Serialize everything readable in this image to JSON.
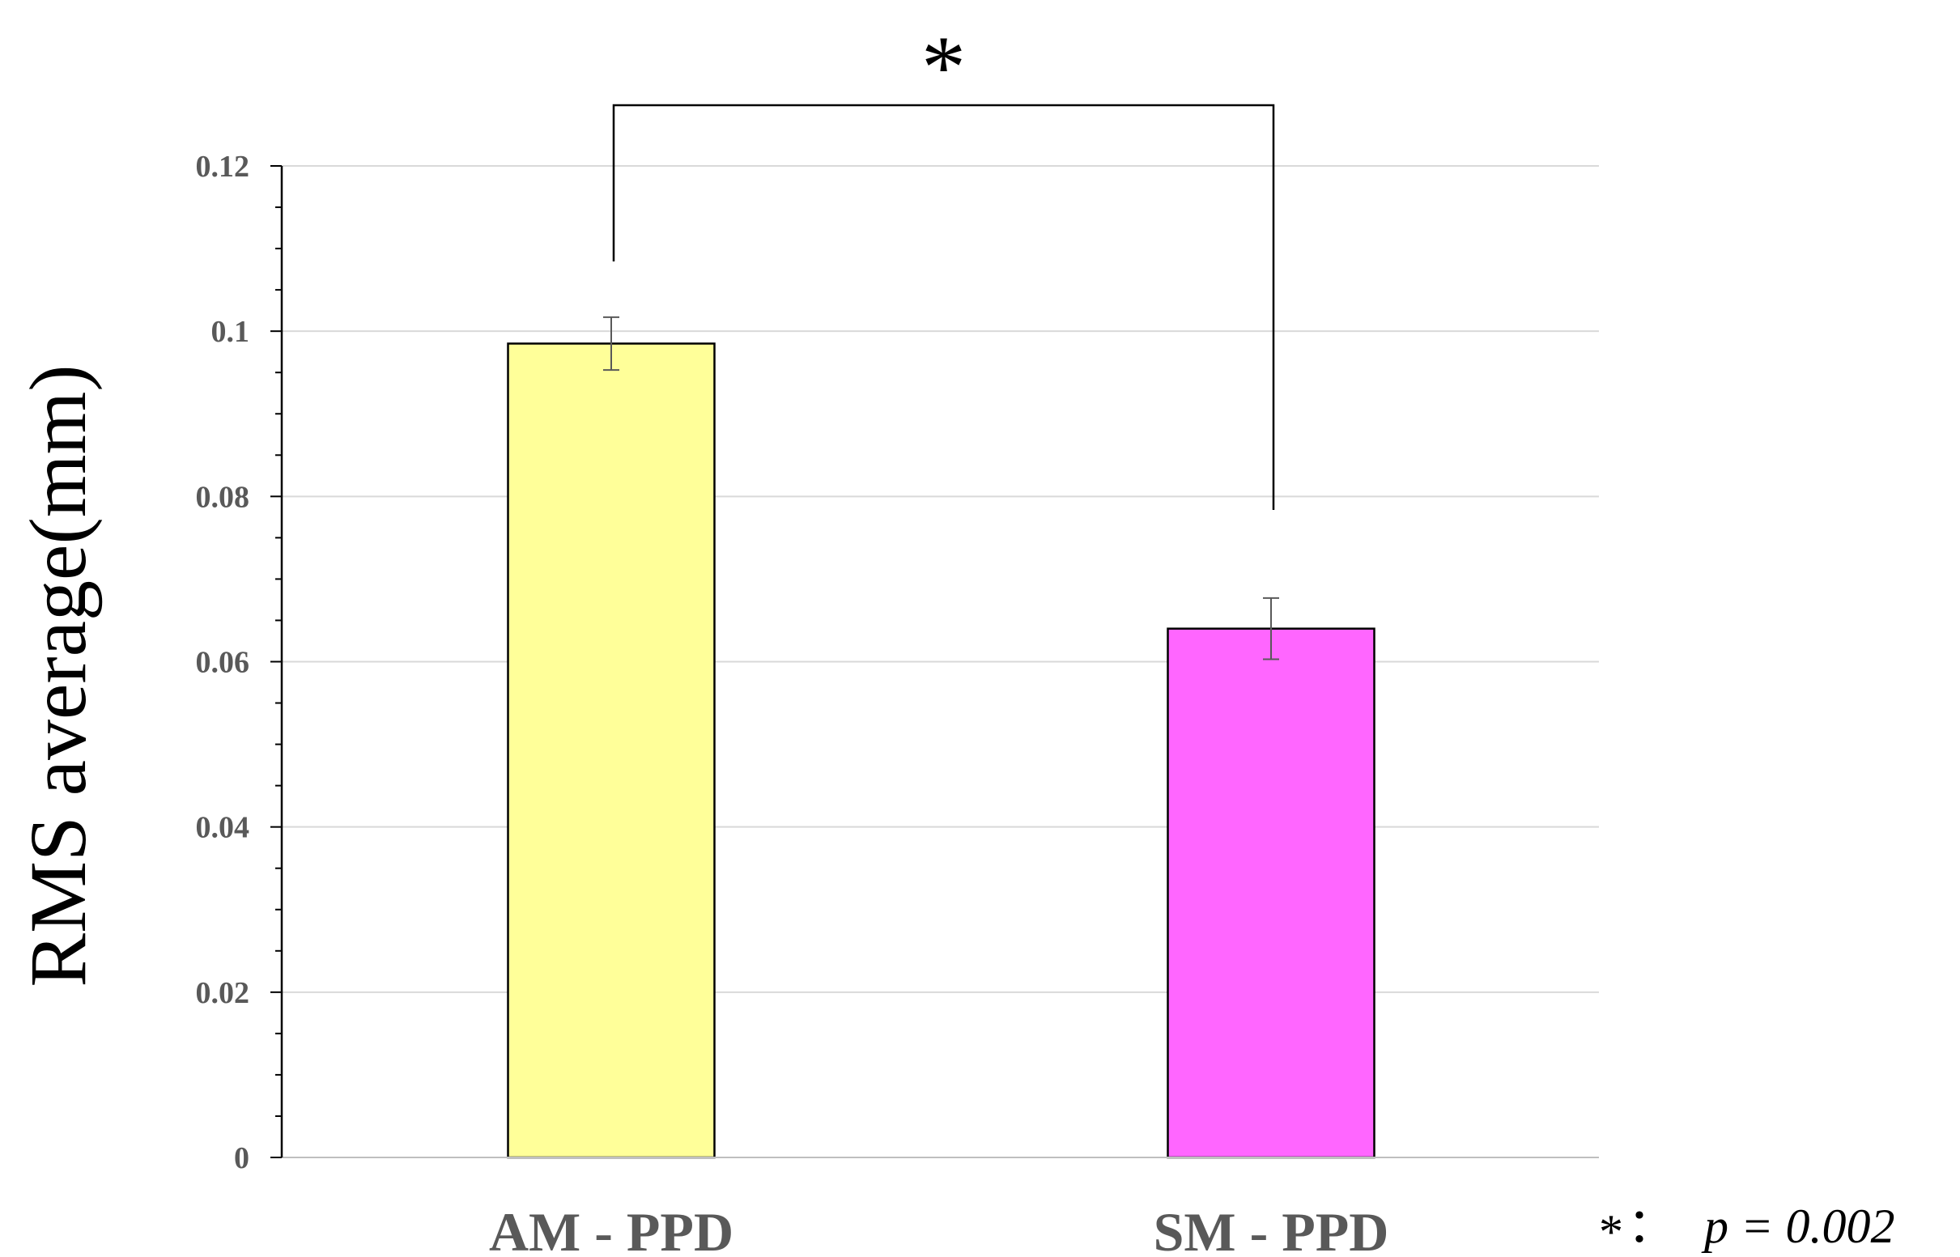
{
  "chart_data": {
    "type": "bar",
    "ylabel": "RMS average(mm)",
    "xlabel": "",
    "ylim": [
      0,
      0.12
    ],
    "yticks": [
      "0",
      "0.02",
      "0.04",
      "0.06",
      "0.08",
      "0.1",
      "0.12"
    ],
    "grid": true,
    "categories": [
      "AM - PPD",
      "SM - PPD"
    ],
    "values": [
      0.0985,
      0.064
    ],
    "errors": [
      0.0032,
      0.0037
    ],
    "colors": [
      "#ffff99",
      "#ff66ff"
    ],
    "significance": {
      "marker": "*",
      "between": [
        0,
        1
      ],
      "note_marker": "*",
      "note_sep": "：",
      "note_text": "p = 0.002"
    }
  }
}
